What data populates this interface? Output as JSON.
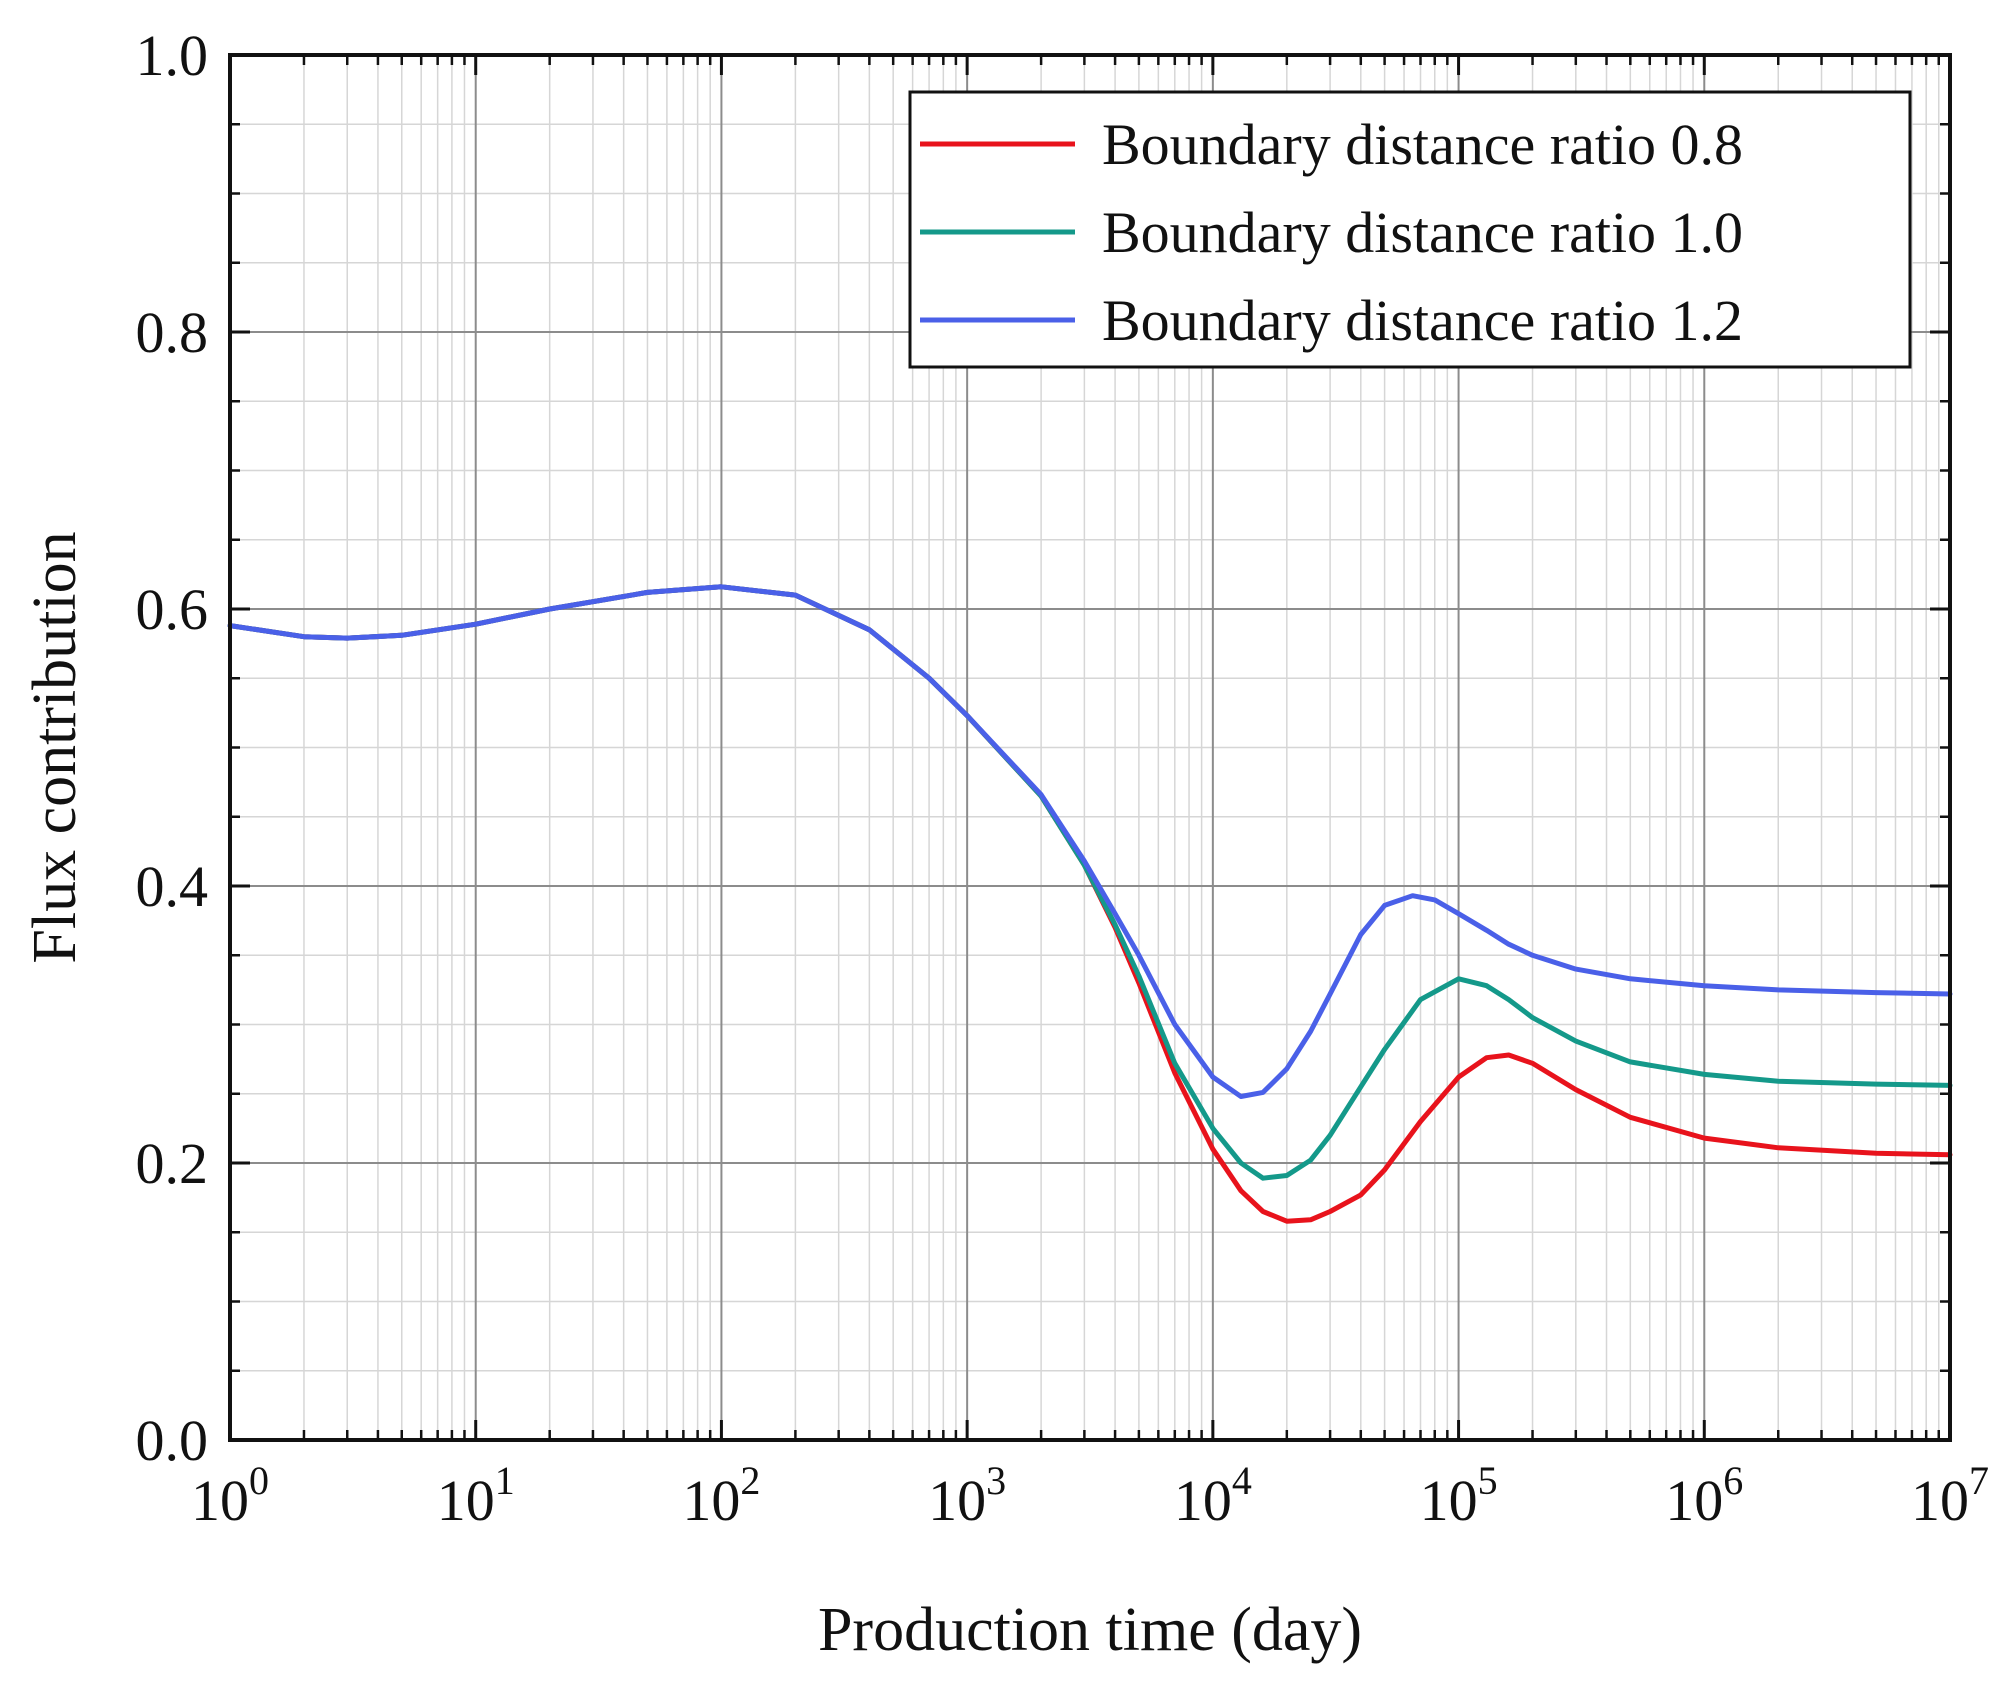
{
  "chart_data": {
    "type": "line",
    "title": "",
    "xlabel": "Production time (day)",
    "ylabel": "Flux contribution",
    "xscale": "log",
    "xlim": [
      1,
      10000000
    ],
    "ylim": [
      0,
      1.0
    ],
    "grid": true,
    "legend_position": "top-right",
    "x_ticks": [
      {
        "value": 1,
        "base": "10",
        "exp": "0"
      },
      {
        "value": 10,
        "base": "10",
        "exp": "1"
      },
      {
        "value": 100,
        "base": "10",
        "exp": "2"
      },
      {
        "value": 1000,
        "base": "10",
        "exp": "3"
      },
      {
        "value": 10000,
        "base": "10",
        "exp": "4"
      },
      {
        "value": 100000,
        "base": "10",
        "exp": "5"
      },
      {
        "value": 1000000,
        "base": "10",
        "exp": "6"
      },
      {
        "value": 10000000,
        "base": "10",
        "exp": "7"
      }
    ],
    "y_ticks": [
      {
        "value": 0.0,
        "label": "0.0"
      },
      {
        "value": 0.2,
        "label": "0.2"
      },
      {
        "value": 0.4,
        "label": "0.4"
      },
      {
        "value": 0.6,
        "label": "0.6"
      },
      {
        "value": 0.8,
        "label": "0.8"
      },
      {
        "value": 1.0,
        "label": "1.0"
      }
    ],
    "series": [
      {
        "name": "Boundary distance ratio 0.8",
        "color": "#e8131c",
        "points": [
          [
            1,
            0.588
          ],
          [
            2,
            0.58
          ],
          [
            3,
            0.579
          ],
          [
            5,
            0.581
          ],
          [
            10,
            0.589
          ],
          [
            20,
            0.6
          ],
          [
            50,
            0.612
          ],
          [
            100,
            0.616
          ],
          [
            200,
            0.61
          ],
          [
            400,
            0.585
          ],
          [
            700,
            0.55
          ],
          [
            1000,
            0.523
          ],
          [
            2000,
            0.465
          ],
          [
            3000,
            0.415
          ],
          [
            4000,
            0.37
          ],
          [
            5000,
            0.33
          ],
          [
            7000,
            0.265
          ],
          [
            10000,
            0.21
          ],
          [
            13000,
            0.18
          ],
          [
            16000,
            0.165
          ],
          [
            20000,
            0.158
          ],
          [
            25000,
            0.159
          ],
          [
            30000,
            0.165
          ],
          [
            40000,
            0.177
          ],
          [
            50000,
            0.195
          ],
          [
            70000,
            0.23
          ],
          [
            100000,
            0.262
          ],
          [
            130000,
            0.276
          ],
          [
            160000,
            0.278
          ],
          [
            200000,
            0.272
          ],
          [
            300000,
            0.253
          ],
          [
            500000,
            0.233
          ],
          [
            1000000,
            0.218
          ],
          [
            2000000,
            0.211
          ],
          [
            5000000,
            0.207
          ],
          [
            10000000,
            0.206
          ]
        ]
      },
      {
        "name": "Boundary distance ratio 1.0",
        "color": "#14998a",
        "points": [
          [
            1,
            0.588
          ],
          [
            2,
            0.58
          ],
          [
            3,
            0.579
          ],
          [
            5,
            0.581
          ],
          [
            10,
            0.589
          ],
          [
            20,
            0.6
          ],
          [
            50,
            0.612
          ],
          [
            100,
            0.616
          ],
          [
            200,
            0.61
          ],
          [
            400,
            0.585
          ],
          [
            700,
            0.55
          ],
          [
            1000,
            0.523
          ],
          [
            2000,
            0.465
          ],
          [
            3000,
            0.415
          ],
          [
            4000,
            0.372
          ],
          [
            5000,
            0.335
          ],
          [
            7000,
            0.272
          ],
          [
            10000,
            0.225
          ],
          [
            13000,
            0.2
          ],
          [
            16000,
            0.189
          ],
          [
            20000,
            0.191
          ],
          [
            25000,
            0.202
          ],
          [
            30000,
            0.22
          ],
          [
            40000,
            0.255
          ],
          [
            50000,
            0.282
          ],
          [
            70000,
            0.318
          ],
          [
            100000,
            0.333
          ],
          [
            130000,
            0.328
          ],
          [
            160000,
            0.318
          ],
          [
            200000,
            0.305
          ],
          [
            300000,
            0.288
          ],
          [
            500000,
            0.273
          ],
          [
            1000000,
            0.264
          ],
          [
            2000000,
            0.259
          ],
          [
            5000000,
            0.257
          ],
          [
            10000000,
            0.256
          ]
        ]
      },
      {
        "name": "Boundary distance ratio 1.2",
        "color": "#4a60e8",
        "points": [
          [
            1,
            0.588
          ],
          [
            2,
            0.58
          ],
          [
            3,
            0.579
          ],
          [
            5,
            0.581
          ],
          [
            10,
            0.589
          ],
          [
            20,
            0.6
          ],
          [
            50,
            0.612
          ],
          [
            100,
            0.616
          ],
          [
            200,
            0.61
          ],
          [
            400,
            0.585
          ],
          [
            700,
            0.55
          ],
          [
            1000,
            0.523
          ],
          [
            2000,
            0.466
          ],
          [
            3000,
            0.418
          ],
          [
            4000,
            0.38
          ],
          [
            5000,
            0.35
          ],
          [
            7000,
            0.3
          ],
          [
            10000,
            0.262
          ],
          [
            13000,
            0.248
          ],
          [
            16000,
            0.251
          ],
          [
            20000,
            0.268
          ],
          [
            25000,
            0.295
          ],
          [
            30000,
            0.322
          ],
          [
            40000,
            0.365
          ],
          [
            50000,
            0.386
          ],
          [
            65000,
            0.393
          ],
          [
            80000,
            0.39
          ],
          [
            100000,
            0.38
          ],
          [
            130000,
            0.368
          ],
          [
            160000,
            0.358
          ],
          [
            200000,
            0.35
          ],
          [
            300000,
            0.34
          ],
          [
            500000,
            0.333
          ],
          [
            1000000,
            0.328
          ],
          [
            2000000,
            0.325
          ],
          [
            5000000,
            0.323
          ],
          [
            10000000,
            0.322
          ]
        ]
      }
    ]
  }
}
